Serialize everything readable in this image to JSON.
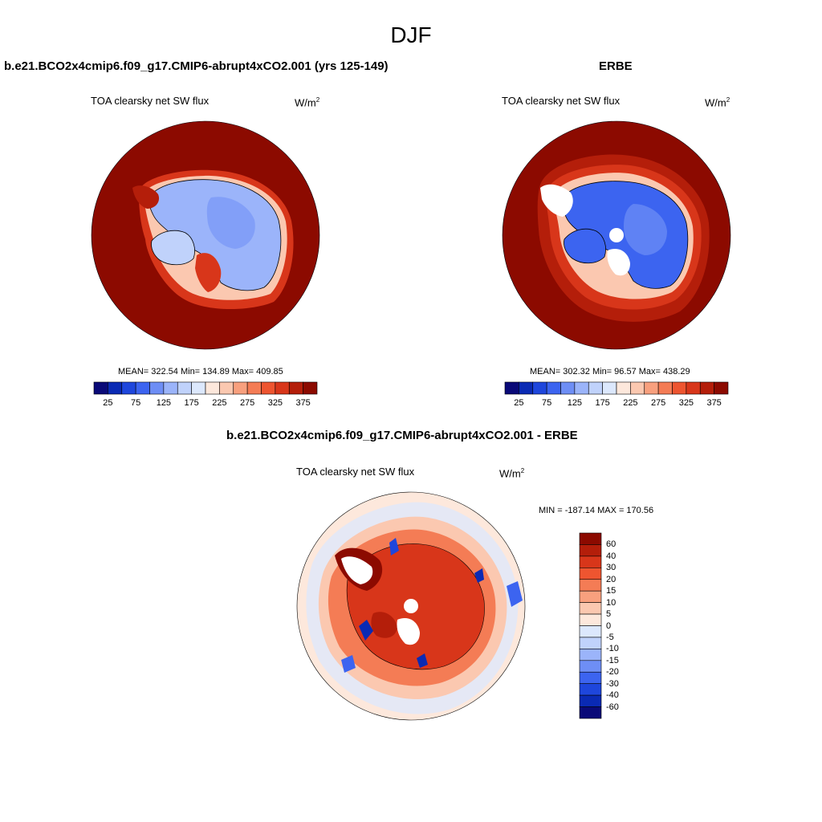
{
  "page": {
    "title": "DJF"
  },
  "panels": {
    "model": {
      "title": "b.e21.BCO2x4cmip6.f09_g17.CMIP6-abrupt4xCO2.001 (yrs 125-149)",
      "variable": "TOA clearsky net SW flux",
      "units_base": "W/m",
      "units_exp": "2",
      "stats": "MEAN= 322.54  Min= 134.89  Max= 409.85",
      "colorbar_ticks": [
        "25",
        "75",
        "125",
        "175",
        "225",
        "275",
        "325",
        "375"
      ]
    },
    "obs": {
      "title": "ERBE",
      "variable": "TOA clearsky net SW flux",
      "units_base": "W/m",
      "units_exp": "2",
      "stats": "MEAN= 302.32  Min=  96.57  Max= 438.29",
      "colorbar_ticks": [
        "25",
        "75",
        "125",
        "175",
        "225",
        "275",
        "325",
        "375"
      ]
    },
    "diff": {
      "title": "b.e21.BCO2x4cmip6.f09_g17.CMIP6-abrupt4xCO2.001 - ERBE",
      "variable": "TOA clearsky net SW flux",
      "units_base": "W/m",
      "units_exp": "2",
      "stats": "MIN = -187.14 MAX = 170.56",
      "colorbar_labels": [
        "60",
        "40",
        "30",
        "20",
        "15",
        "10",
        "5",
        "0",
        "-5",
        "-10",
        "-15",
        "-20",
        "-30",
        "-40",
        "-60"
      ]
    }
  },
  "colors": {
    "abs_scale": [
      "#0a0a78",
      "#0a2ab4",
      "#1e46dc",
      "#3c64f0",
      "#6e8ef5",
      "#9bb4fa",
      "#c0d2fb",
      "#dce8fd",
      "#fde8dc",
      "#fbc8b0",
      "#f8a07e",
      "#f47c55",
      "#ee5530",
      "#d8361a",
      "#b41e0a",
      "#8c0a00"
    ],
    "diff_scale": [
      "#8c0a00",
      "#b41e0a",
      "#d8361a",
      "#ee5530",
      "#f47c55",
      "#f8a07e",
      "#fbc8b0",
      "#fde8dc",
      "#dce8fd",
      "#c0d2fb",
      "#9bb4fa",
      "#6e8ef5",
      "#3c64f0",
      "#1e46dc",
      "#0a2ab4",
      "#0a0a78"
    ]
  }
}
